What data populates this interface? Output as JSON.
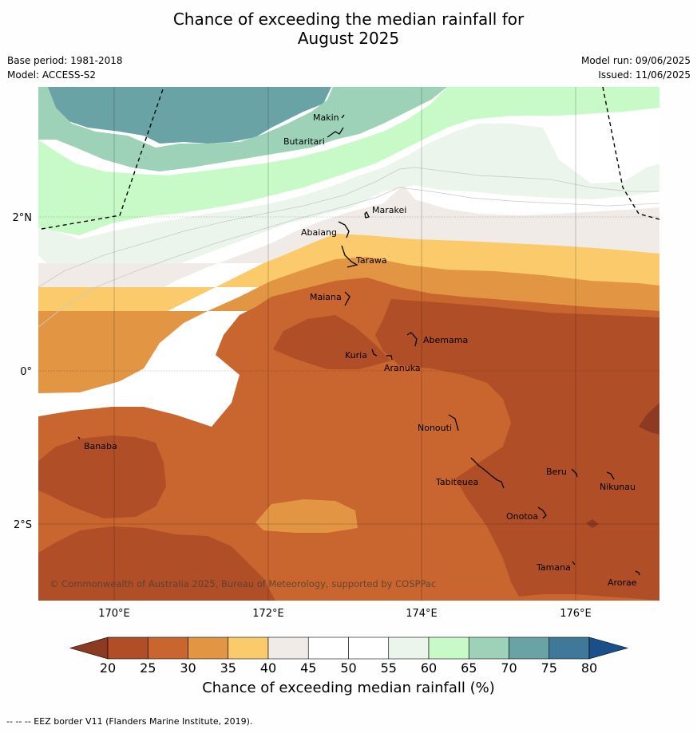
{
  "title_line1": "Chance of exceeding the median rainfall for",
  "title_line2": "August 2025",
  "base_period": "Base period: 1981-2018",
  "model": "Model: ACCESS-S2",
  "model_run": "Model run: 09/06/2025",
  "issued": "Issued: 11/06/2025",
  "copyright": "© Commonwealth of Australia 2025, Bureau of Meteorology, supported by COSPPac",
  "lat_labels": [
    "2°N",
    "0°",
    "2°S"
  ],
  "lon_labels": [
    "170°E",
    "172°E",
    "174°E",
    "176°E"
  ],
  "places": [
    "Makin",
    "Butaritari",
    "Marakei",
    "Abaiang",
    "Tarawa",
    "Maiana",
    "Abemama",
    "Kuria",
    "Aranuka",
    "Nonouti",
    "Banaba",
    "Beru",
    "Nikunau",
    "Tabiteuea",
    "Onotoa",
    "Tamana",
    "Arorae"
  ],
  "colorbar": {
    "title": "Chance of exceeding median rainfall (%)",
    "ticks": [
      "20",
      "25",
      "30",
      "35",
      "40",
      "45",
      "50",
      "55",
      "60",
      "65",
      "70",
      "75",
      "80"
    ],
    "colors": [
      "#b04e27",
      "#c9652f",
      "#e29644",
      "#fbca6b",
      "#f0ebe6",
      "#ffffff",
      "#ffffff",
      "#ebf5eb",
      "#c8fac8",
      "#9dd2b9",
      "#6aa3a5",
      "#3f7898"
    ],
    "under_color": "#8c3a22",
    "over_color": "#1a4f8a"
  },
  "footer": "--  --  -- EEZ border V11 (Flanders Marine Institute, 2019)."
}
